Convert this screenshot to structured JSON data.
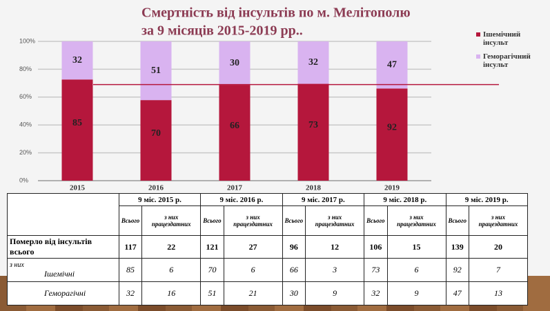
{
  "chart_data": {
    "type": "bar",
    "stacked": "percent",
    "title": "Смертність від інсультів по м. Мелітополю",
    "subtitle": "за 9 місяців 2015-2019 рр..",
    "categories": [
      "2015",
      "2016",
      "2017",
      "2018",
      "2019"
    ],
    "series": [
      {
        "name": "Ішемічний інсульт",
        "color": "#b5173c",
        "values": [
          85,
          70,
          66,
          73,
          92
        ]
      },
      {
        "name": "Геморагічний інсульт",
        "color": "#d9b3f0",
        "values": [
          32,
          51,
          30,
          32,
          47
        ]
      }
    ],
    "ylim": [
      0,
      100
    ],
    "yticks": [
      {
        "value": 0,
        "label": "0%"
      },
      {
        "value": 20,
        "label": "20%"
      },
      {
        "value": 40,
        "label": "40%"
      },
      {
        "value": 60,
        "label": "60%"
      },
      {
        "value": 80,
        "label": "80%"
      },
      {
        "value": 100,
        "label": "100%"
      }
    ],
    "grid": true,
    "hline": 69,
    "hline_color": "#b5173c"
  },
  "table": {
    "header": [
      "9 міс. 2015 р.",
      "9 міс. 2016 р.",
      "9 міс. 2017 р.",
      "9 міс. 2018 р.",
      "9 міс. 2019 р."
    ],
    "subheader": [
      "Всього",
      "з них працездатних"
    ],
    "rows": [
      {
        "label": "Померло від інсультів всього",
        "values": [
          117,
          22,
          121,
          27,
          96,
          12,
          106,
          15,
          139,
          20
        ]
      },
      {
        "prefix": "з них",
        "label": "Ішемічні",
        "values": [
          85,
          6,
          70,
          6,
          66,
          3,
          73,
          6,
          92,
          7
        ]
      },
      {
        "label": "Геморагічні",
        "values": [
          32,
          16,
          51,
          21,
          30,
          9,
          32,
          9,
          47,
          13
        ]
      }
    ]
  }
}
